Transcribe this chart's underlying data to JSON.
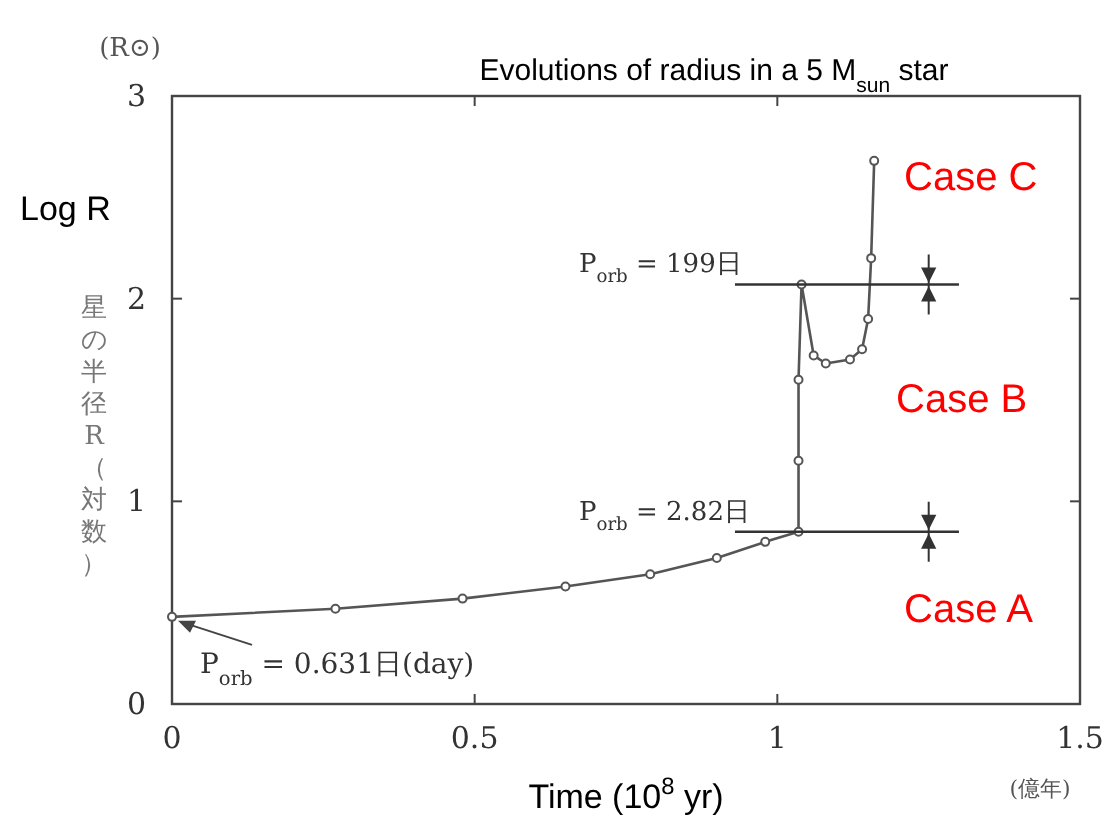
{
  "chart_data": {
    "type": "line",
    "title": "Evolutions of radius in a 5 M$_{sun}$ star",
    "xlabel": "Time (10$^{8}$ yr)",
    "ylabel": "Log R",
    "xlim": [
      0,
      1.5
    ],
    "xticks": [
      0,
      0.5,
      1,
      1.5
    ],
    "ylim": [
      0,
      3
    ],
    "yticks": [
      0,
      1,
      2,
      3
    ],
    "grid": false,
    "series": [
      {
        "color": "#555555",
        "marker": "circle",
        "x": [
          0,
          0.27,
          0.48,
          0.65,
          0.79,
          0.9,
          0.98,
          1.035,
          1.035,
          1.035,
          1.04,
          1.06,
          1.08,
          1.12,
          1.14,
          1.15,
          1.155,
          1.16
        ],
        "values": [
          0.43,
          0.47,
          0.52,
          0.58,
          0.64,
          0.72,
          0.8,
          0.85,
          1.2,
          1.6,
          2.07,
          1.72,
          1.68,
          1.7,
          1.75,
          1.9,
          2.2,
          2.68
        ]
      },
      {
        "color": "#333333",
        "marker": "none",
        "x": [
          0.93,
          1.3
        ],
        "values": [
          0.85,
          0.85
        ]
      },
      {
        "color": "#333333",
        "marker": "none",
        "x": [
          0.93,
          1.3
        ],
        "values": [
          2.07,
          2.07
        ]
      }
    ],
    "annotations": [
      "(R⊙)",
      "星の半径R（対数）",
      "(億年)",
      "P$_{orb}$ = 0.631日(day)",
      "P$_{orb}$ = 2.82日",
      "P$_{orb}$ = 199日",
      "Case A",
      "Case B",
      "Case C"
    ]
  }
}
